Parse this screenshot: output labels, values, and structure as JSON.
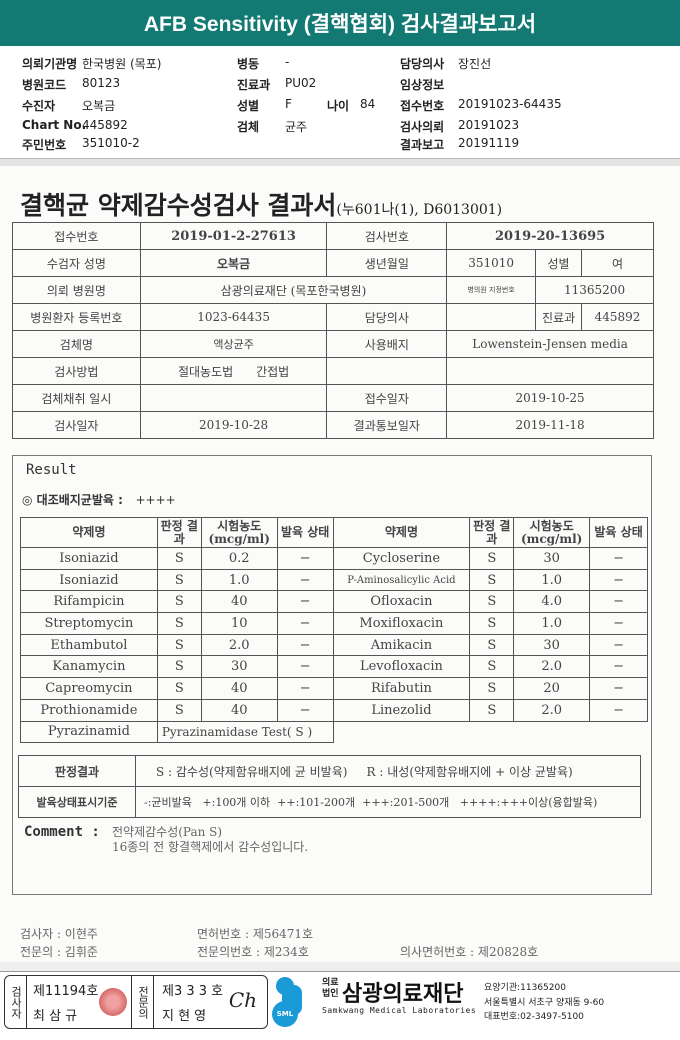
{
  "header": {
    "title": "AFB Sensitivity (결핵협회) 검사결과보고서"
  },
  "patient_info": {
    "col1": [
      {
        "label": "의뢰기관명",
        "value": "한국병원 (목포)"
      },
      {
        "label": "병원코드",
        "value": "80123"
      },
      {
        "label": "수진자",
        "value": "오복금"
      },
      {
        "label": "Chart No.",
        "value": "445892"
      },
      {
        "label": "주민번호",
        "value": "351010-2"
      }
    ],
    "col2": [
      {
        "label": "병동",
        "value": "-"
      },
      {
        "label": "진료과",
        "value": "PU02"
      },
      {
        "label": "성별",
        "value": "F"
      },
      {
        "label": "검체",
        "value": "균주"
      }
    ],
    "age": {
      "label": "나이",
      "value": "84"
    },
    "col3": [
      {
        "label": "담당의사",
        "value": "장진선"
      },
      {
        "label": "임상정보",
        "value": ""
      },
      {
        "label": "접수번호",
        "value": "20191023-64435"
      },
      {
        "label": "검사의뢰",
        "value": "20191023"
      },
      {
        "label": "결과보고",
        "value": "20191119"
      }
    ]
  },
  "document": {
    "title": "결핵균 약제감수성검사 결과서",
    "code": "(누601나(1), D6013001)",
    "info": {
      "reception_no_label": "접수번호",
      "reception_no": "2019-01-2-27613",
      "test_no_label": "검사번호",
      "test_no": "2019-20-13695",
      "name_label": "수검자 성명",
      "name": "오복금",
      "birth_label": "생년월일",
      "birth": "351010",
      "sex_label": "성별",
      "sex": "여",
      "hospital_label": "의뢰 병원명",
      "hospital": "삼광의료재단 (목포한국병원)",
      "hosp_id_label": "병의원 지정번호",
      "hosp_id": "11365200",
      "reg_label": "병원환자 등록번호",
      "reg": "1023-64435",
      "doctor_label": "담당의사",
      "doctor": "",
      "dept_label": "진료과",
      "dept": "445892",
      "specimen_label": "검체명",
      "specimen": "액상균주",
      "medium_label": "사용배지",
      "medium": "Lowenstein-Jensen media",
      "method_label": "검사방법",
      "method1": "절대농도법",
      "method2": "간접법",
      "collect_label": "검체채취 일시",
      "collect": "",
      "received_label": "접수일자",
      "received": "2019-10-25",
      "test_date_label": "검사일자",
      "test_date": "2019-10-28",
      "report_date_label": "결과통보일자",
      "report_date": "2019-11-18"
    },
    "result": {
      "title": "Result",
      "control_label": "◎ 대조배지균발육 :",
      "control_value": "++++",
      "headers": [
        "약제명",
        "판정 결과",
        "시험농도 (mcg/ml)",
        "발육 상태"
      ],
      "left": [
        [
          "Isoniazid",
          "S",
          "0.2",
          "−"
        ],
        [
          "Isoniazid",
          "S",
          "1.0",
          "−"
        ],
        [
          "Rifampicin",
          "S",
          "40",
          "−"
        ],
        [
          "Streptomycin",
          "S",
          "10",
          "−"
        ],
        [
          "Ethambutol",
          "S",
          "2.0",
          "−"
        ],
        [
          "Kanamycin",
          "S",
          "30",
          "−"
        ],
        [
          "Capreomycin",
          "S",
          "40",
          "−"
        ],
        [
          "Prothionamide",
          "S",
          "40",
          "−"
        ]
      ],
      "right": [
        [
          "Cycloserine",
          "S",
          "30",
          "−"
        ],
        [
          "P-Aminosalicylic Acid",
          "S",
          "1.0",
          "−"
        ],
        [
          "Ofloxacin",
          "S",
          "4.0",
          "−"
        ],
        [
          "Moxifloxacin",
          "S",
          "1.0",
          "−"
        ],
        [
          "Amikacin",
          "S",
          "30",
          "−"
        ],
        [
          "Levofloxacin",
          "S",
          "2.0",
          "−"
        ],
        [
          "Rifabutin",
          "S",
          "20",
          "−"
        ],
        [
          "Linezolid",
          "S",
          "2.0",
          "−"
        ]
      ],
      "pza": {
        "name": "Pyrazinamid",
        "test": "Pyrazinamidase Test( S )"
      },
      "legend": {
        "judge_label": "판정결과",
        "judge_s": "S : 감수성(약제함유배지에 균 비발육)",
        "judge_r": "R : 내성(약제함유배지에 + 이상 균발육)",
        "growth_label": "발육상태표시기준",
        "growth": "-:균비발육   +:100개 이하  ++:101-200개  +++:201-500개   ++++:+++이상(융합발육)"
      },
      "comment_label": "Comment :",
      "comment1": "전약제감수성(Pan S)",
      "comment2": "16종의 전 항결핵제에서 감수성입니다."
    },
    "signatures": {
      "tester": "검사자 :  이현주",
      "license": "면허번호   :   제56471호",
      "specialist": "전문의 :  김휘준",
      "spec_no": "전문의번호 :   제234호",
      "doctor_license": "의사면허번호 :  제20828호"
    }
  },
  "footer": {
    "tester_label": "검사자",
    "tester_no": "제11194호",
    "tester_name": "최 삼 규",
    "spec_label": "전문의",
    "spec_no": "제3 3 3 호",
    "spec_name": "지 현 영",
    "org_prefix": "의료법인",
    "org_name": "삼광의료재단",
    "org_en": "Samkwang Medical Laboratories",
    "logo_text": "SML",
    "code": "요양기관:11365200",
    "address": "서울특별시 서초구 양재동 9-60",
    "phone": "대표번호:02-3497-5100"
  },
  "colors": {
    "header": "#127a72",
    "logo": "#1a9ad6"
  }
}
